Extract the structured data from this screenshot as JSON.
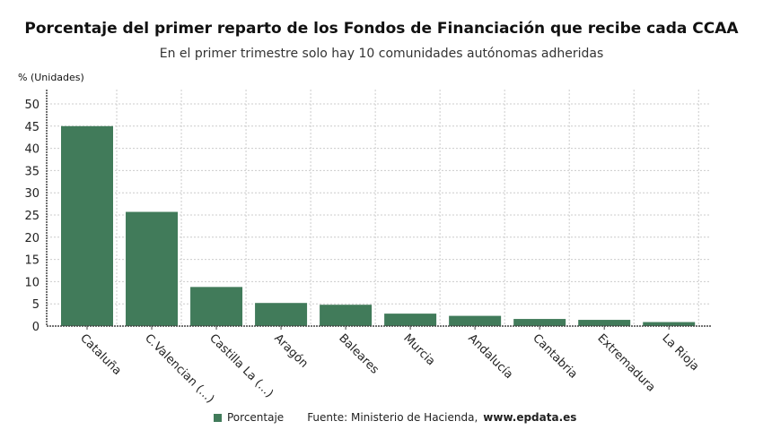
{
  "title": "Porcentaje del primer reparto de los Fondos de Financiación que recibe cada CCAA",
  "subtitle": "En el primer trimestre solo hay 10 comunidades autónomas adheridas",
  "source_prefix": "Fuente: Ministerio de Hacienda, ",
  "source_site": "www.epdata.es",
  "chart_data": {
    "type": "bar",
    "title": "Porcentaje del primer reparto de los Fondos de Financiación que recibe cada CCAA",
    "ylabel": "% (Unidades)",
    "ylim": [
      0,
      50
    ],
    "yticks": [
      0,
      5,
      10,
      15,
      20,
      25,
      30,
      35,
      40,
      45,
      50
    ],
    "grid": true,
    "legend_placement": "bottom",
    "color": "#417b5a",
    "categories": [
      "Cataluña",
      "C.Valencian (...)",
      "Castilla La (...)",
      "Aragón",
      "Baleares",
      "Murcia",
      "Andalucía",
      "Cantabria",
      "Extremadura",
      "La Rioja"
    ],
    "series": [
      {
        "name": "Porcentaje",
        "values": [
          45.0,
          25.7,
          8.8,
          5.2,
          4.8,
          2.8,
          2.3,
          1.6,
          1.4,
          0.9
        ]
      }
    ]
  }
}
